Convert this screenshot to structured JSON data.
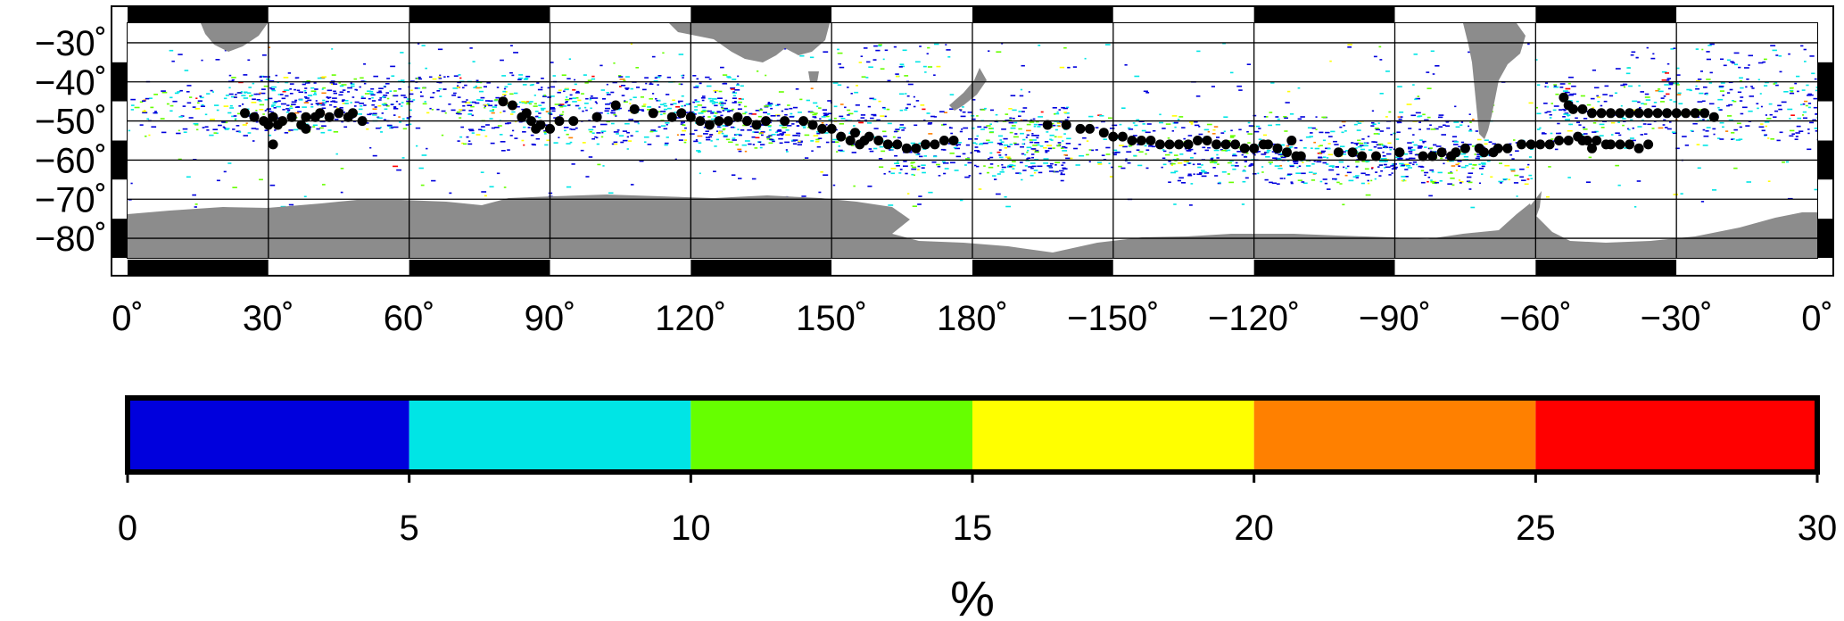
{
  "map": {
    "projection": "plate-carree",
    "lon_range": [
      0,
      360
    ],
    "lat_range": [
      -85,
      -25
    ],
    "graticule_step_deg": 30,
    "graticule_lat_lines": [
      -30,
      -40,
      -50,
      -60,
      -70,
      -80
    ],
    "land_color": "#8c8c8c",
    "frame_colors": [
      "#000000",
      "#ffffff"
    ],
    "lon_tick_labels": [
      {
        "lon": 0,
        "label": "0˚"
      },
      {
        "lon": 30,
        "label": "30˚"
      },
      {
        "lon": 60,
        "label": "60˚"
      },
      {
        "lon": 90,
        "label": "90˚"
      },
      {
        "lon": 120,
        "label": "120˚"
      },
      {
        "lon": 150,
        "label": "150˚"
      },
      {
        "lon": 180,
        "label": "180˚"
      },
      {
        "lon": 210,
        "label": "−150˚"
      },
      {
        "lon": 240,
        "label": "−120˚"
      },
      {
        "lon": 270,
        "label": "−90˚"
      },
      {
        "lon": 300,
        "label": "−60˚"
      },
      {
        "lon": 330,
        "label": "−30˚"
      },
      {
        "lon": 360,
        "label": "0˚"
      }
    ],
    "lat_tick_labels": [
      {
        "lat": -30,
        "label": "−30˚"
      },
      {
        "lat": -40,
        "label": "−40˚"
      },
      {
        "lat": -50,
        "label": "−50˚"
      },
      {
        "lat": -60,
        "label": "−60˚"
      },
      {
        "lat": -70,
        "label": "−70˚"
      },
      {
        "lat": -80,
        "label": "−80˚"
      }
    ],
    "front_points": [
      [
        25,
        -48
      ],
      [
        27,
        -49
      ],
      [
        29,
        -50
      ],
      [
        30,
        -51
      ],
      [
        31,
        -49
      ],
      [
        32,
        -51
      ],
      [
        33,
        -50
      ],
      [
        35,
        -49
      ],
      [
        37,
        -51
      ],
      [
        38,
        -49
      ],
      [
        40,
        -49
      ],
      [
        41,
        -48
      ],
      [
        43,
        -49
      ],
      [
        45,
        -48
      ],
      [
        47,
        -49
      ],
      [
        48,
        -48
      ],
      [
        50,
        -50
      ],
      [
        31,
        -56
      ],
      [
        38,
        -52
      ],
      [
        80,
        -45
      ],
      [
        82,
        -46
      ],
      [
        84,
        -49
      ],
      [
        85,
        -48
      ],
      [
        86,
        -50
      ],
      [
        87,
        -52
      ],
      [
        88,
        -51
      ],
      [
        90,
        -52
      ],
      [
        92,
        -50
      ],
      [
        95,
        -50
      ],
      [
        100,
        -49
      ],
      [
        104,
        -46
      ],
      [
        108,
        -47
      ],
      [
        112,
        -48
      ],
      [
        116,
        -49
      ],
      [
        118,
        -48
      ],
      [
        120,
        -49
      ],
      [
        122,
        -50
      ],
      [
        124,
        -51
      ],
      [
        126,
        -50
      ],
      [
        128,
        -50
      ],
      [
        130,
        -49
      ],
      [
        132,
        -50
      ],
      [
        134,
        -51
      ],
      [
        136,
        -50
      ],
      [
        140,
        -50
      ],
      [
        144,
        -50
      ],
      [
        146,
        -51
      ],
      [
        148,
        -52
      ],
      [
        150,
        -52
      ],
      [
        152,
        -54
      ],
      [
        154,
        -55
      ],
      [
        155,
        -53
      ],
      [
        156,
        -56
      ],
      [
        157,
        -55
      ],
      [
        158,
        -54
      ],
      [
        160,
        -55
      ],
      [
        162,
        -56
      ],
      [
        164,
        -56
      ],
      [
        166,
        -57
      ],
      [
        168,
        -57
      ],
      [
        170,
        -56
      ],
      [
        172,
        -56
      ],
      [
        174,
        -55
      ],
      [
        176,
        -55
      ],
      [
        196,
        -51
      ],
      [
        200,
        -51
      ],
      [
        203,
        -52
      ],
      [
        205,
        -52
      ],
      [
        208,
        -53
      ],
      [
        210,
        -54
      ],
      [
        212,
        -54
      ],
      [
        214,
        -55
      ],
      [
        216,
        -55
      ],
      [
        218,
        -55
      ],
      [
        220,
        -56
      ],
      [
        222,
        -56
      ],
      [
        224,
        -56
      ],
      [
        226,
        -56
      ],
      [
        228,
        -55
      ],
      [
        230,
        -55
      ],
      [
        232,
        -56
      ],
      [
        234,
        -56
      ],
      [
        236,
        -56
      ],
      [
        238,
        -57
      ],
      [
        240,
        -57
      ],
      [
        242,
        -56
      ],
      [
        243,
        -56
      ],
      [
        245,
        -57
      ],
      [
        247,
        -58
      ],
      [
        249,
        -59
      ],
      [
        248,
        -55
      ],
      [
        250,
        -59
      ],
      [
        258,
        -58
      ],
      [
        261,
        -58
      ],
      [
        263,
        -59
      ],
      [
        266,
        -59
      ],
      [
        271,
        -58
      ],
      [
        276,
        -59
      ],
      [
        278,
        -59
      ],
      [
        280,
        -58
      ],
      [
        282,
        -59
      ],
      [
        283,
        -58
      ],
      [
        285,
        -57
      ],
      [
        288,
        -57
      ],
      [
        289,
        -58
      ],
      [
        291,
        -58
      ],
      [
        292,
        -57
      ],
      [
        294,
        -57
      ],
      [
        297,
        -56
      ],
      [
        299,
        -56
      ],
      [
        301,
        -56
      ],
      [
        303,
        -56
      ],
      [
        305,
        -55
      ],
      [
        307,
        -55
      ],
      [
        309,
        -54
      ],
      [
        310,
        -55
      ],
      [
        311,
        -55
      ],
      [
        312,
        -57
      ],
      [
        313,
        -55
      ],
      [
        315,
        -56
      ],
      [
        316,
        -56
      ],
      [
        318,
        -56
      ],
      [
        320,
        -56
      ],
      [
        322,
        -57
      ],
      [
        324,
        -56
      ],
      [
        306,
        -44
      ],
      [
        307,
        -46
      ],
      [
        308,
        -47
      ],
      [
        310,
        -47
      ],
      [
        312,
        -48
      ],
      [
        314,
        -48
      ],
      [
        316,
        -48
      ],
      [
        318,
        -48
      ],
      [
        320,
        -48
      ],
      [
        322,
        -48
      ],
      [
        324,
        -48
      ],
      [
        326,
        -48
      ],
      [
        328,
        -48
      ],
      [
        330,
        -48
      ],
      [
        332,
        -48
      ],
      [
        334,
        -48
      ],
      [
        336,
        -48
      ],
      [
        338,
        -49
      ]
    ],
    "percent_bands": [
      {
        "lon": [
          0,
          60
        ],
        "lat": [
          -53,
          -42
        ],
        "density": 0.35
      },
      {
        "lon": [
          20,
          130
        ],
        "lat": [
          -48,
          -38
        ],
        "density": 0.45
      },
      {
        "lon": [
          70,
          150
        ],
        "lat": [
          -56,
          -44
        ],
        "density": 0.35
      },
      {
        "lon": [
          120,
          200
        ],
        "lat": [
          -58,
          -46
        ],
        "density": 0.3
      },
      {
        "lon": [
          160,
          200
        ],
        "lat": [
          -64,
          -55
        ],
        "density": 0.4
      },
      {
        "lon": [
          180,
          290
        ],
        "lat": [
          -62,
          -48
        ],
        "density": 0.3
      },
      {
        "lon": [
          220,
          300
        ],
        "lat": [
          -66,
          -55
        ],
        "density": 0.4
      },
      {
        "lon": [
          300,
          360
        ],
        "lat": [
          -55,
          -40
        ],
        "density": 0.35
      },
      {
        "lon": [
          0,
          360
        ],
        "lat": [
          -72,
          -30
        ],
        "density": 0.03
      },
      {
        "lon": [
          150,
          175
        ],
        "lat": [
          -45,
          -30
        ],
        "density": 0.12
      },
      {
        "lon": [
          320,
          360
        ],
        "lat": [
          -40,
          -30
        ],
        "density": 0.12
      }
    ]
  },
  "colorbar": {
    "colors": [
      "#0000dd",
      "#00e5e5",
      "#66ff00",
      "#ffff00",
      "#ff8000",
      "#ff0000"
    ],
    "bounds": [
      0,
      5,
      10,
      15,
      20,
      25,
      30
    ],
    "tick_labels": [
      "0",
      "5",
      "10",
      "15",
      "20",
      "25",
      "30"
    ],
    "unit": "%"
  }
}
